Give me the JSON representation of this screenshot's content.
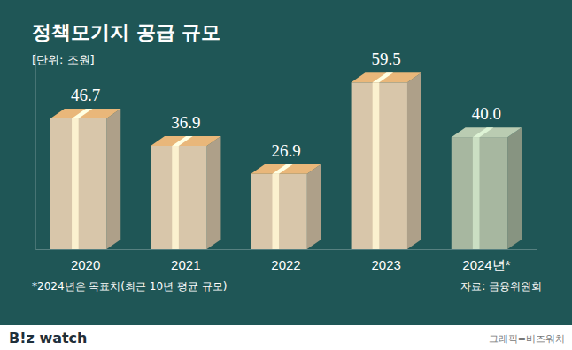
{
  "chart_data": {
    "type": "bar",
    "title": "정책모기지 공급 규모",
    "subtitle": "[단위: 조원]",
    "categories": [
      "2020",
      "2021",
      "2022",
      "2023",
      "2024년*"
    ],
    "values": [
      46.7,
      36.9,
      26.9,
      59.5,
      40.0
    ],
    "value_labels": [
      "46.7",
      "36.9",
      "26.9",
      "59.5",
      "40.0"
    ],
    "colors": [
      "#d8c6aa",
      "#d8c6aa",
      "#d8c6aa",
      "#d8c6aa",
      "#a7b7a0"
    ],
    "data_labels": true,
    "tick_labels": "x",
    "ylim": [
      0,
      70
    ],
    "footnote": "*2024년은 목표치(최근 10년 평균 규모)",
    "source": "자료: 금융위원회",
    "branding": "B!z watch",
    "credit": "그래픽=비즈워치"
  }
}
